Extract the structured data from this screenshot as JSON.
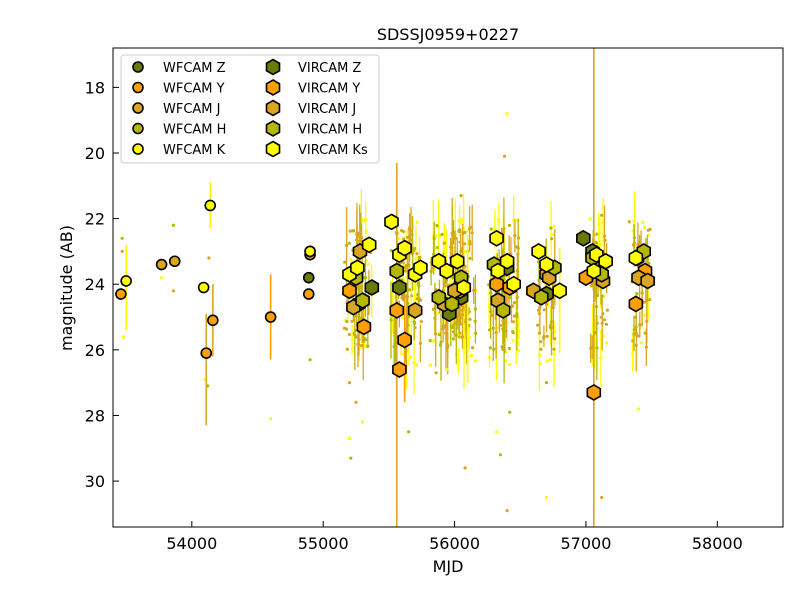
{
  "chart_data": {
    "type": "scatter",
    "title": "SDSSJ0959+0227",
    "xlabel": "MJD",
    "ylabel": "magnitude (AB)",
    "xlim": [
      53400,
      58500
    ],
    "ylim": [
      31.4,
      16.8
    ],
    "y_inverted": true,
    "xticks": [
      54000,
      55000,
      56000,
      57000,
      58000
    ],
    "yticks": [
      18,
      20,
      22,
      24,
      26,
      28,
      30
    ],
    "legend_position": "upper-left",
    "legend_columns": 2,
    "grid": false,
    "series": [
      {
        "name": "WFCAM Z",
        "marker": "circle",
        "color": "#6b7a00",
        "points": [
          [
            54890,
            23.8
          ]
        ]
      },
      {
        "name": "WFCAM Y",
        "marker": "circle",
        "color": "#ff9f00",
        "points": [
          [
            53460,
            24.3
          ],
          [
            54110,
            26.1
          ],
          [
            54600,
            25.0
          ],
          [
            54890,
            24.3
          ],
          [
            54160,
            25.1
          ]
        ]
      },
      {
        "name": "WFCAM J",
        "marker": "circle",
        "color": "#daa520",
        "points": [
          [
            53770,
            23.4
          ],
          [
            53870,
            23.3
          ],
          [
            54900,
            23.1
          ]
        ]
      },
      {
        "name": "WFCAM H",
        "marker": "circle",
        "color": "#b5b800",
        "points": [
          [
            54900,
            23.0
          ]
        ]
      },
      {
        "name": "WFCAM K",
        "marker": "circle",
        "color": "#ffff00",
        "points": [
          [
            53500,
            23.9
          ],
          [
            54090,
            24.1
          ],
          [
            54140,
            21.6
          ],
          [
            54900,
            23.0
          ]
        ]
      },
      {
        "name": "VIRCAM Z",
        "marker": "hexagon",
        "color": "#6b7a00",
        "points": [
          [
            55270,
            24.6
          ],
          [
            55370,
            24.1
          ],
          [
            55580,
            24.1
          ],
          [
            55960,
            24.9
          ],
          [
            56050,
            24.4
          ],
          [
            56400,
            23.5
          ],
          [
            56700,
            24.3
          ],
          [
            56980,
            22.6
          ],
          [
            57050,
            23.0
          ]
        ]
      },
      {
        "name": "VIRCAM Y",
        "marker": "hexagon",
        "color": "#ff9f00",
        "points": [
          [
            55200,
            24.2
          ],
          [
            55310,
            25.3
          ],
          [
            55580,
            26.6
          ],
          [
            55620,
            25.7
          ],
          [
            55560,
            24.8
          ],
          [
            56040,
            24.2
          ],
          [
            56320,
            24.0
          ],
          [
            56420,
            24.1
          ],
          [
            56700,
            23.7
          ],
          [
            57060,
            27.3
          ],
          [
            57000,
            23.8
          ],
          [
            57100,
            23.5
          ],
          [
            57380,
            24.6
          ],
          [
            57450,
            23.6
          ]
        ]
      },
      {
        "name": "VIRCAM J",
        "marker": "hexagon",
        "color": "#daa520",
        "points": [
          [
            55230,
            24.7
          ],
          [
            55280,
            23.0
          ],
          [
            55700,
            24.8
          ],
          [
            55920,
            24.6
          ],
          [
            56000,
            24.2
          ],
          [
            56330,
            24.5
          ],
          [
            56600,
            24.2
          ],
          [
            56720,
            23.8
          ],
          [
            57130,
            23.9
          ],
          [
            57400,
            23.8
          ],
          [
            57470,
            23.9
          ]
        ]
      },
      {
        "name": "VIRCAM H",
        "marker": "hexagon",
        "color": "#b5b800",
        "points": [
          [
            55250,
            23.8
          ],
          [
            55300,
            24.5
          ],
          [
            55560,
            23.6
          ],
          [
            55880,
            24.4
          ],
          [
            55980,
            24.6
          ],
          [
            56050,
            23.8
          ],
          [
            56300,
            23.4
          ],
          [
            56370,
            24.8
          ],
          [
            56660,
            24.4
          ],
          [
            56760,
            23.5
          ],
          [
            57050,
            23.2
          ],
          [
            57120,
            23.7
          ],
          [
            57390,
            23.2
          ],
          [
            57440,
            23.0
          ]
        ]
      },
      {
        "name": "VIRCAM Ks",
        "marker": "hexagon",
        "color": "#ffff00",
        "points": [
          [
            55200,
            23.7
          ],
          [
            55260,
            23.5
          ],
          [
            55350,
            22.8
          ],
          [
            55520,
            22.1
          ],
          [
            55580,
            23.1
          ],
          [
            55620,
            22.9
          ],
          [
            55700,
            23.7
          ],
          [
            55740,
            23.5
          ],
          [
            55880,
            23.3
          ],
          [
            55940,
            23.6
          ],
          [
            56020,
            23.3
          ],
          [
            56070,
            24.1
          ],
          [
            56320,
            22.6
          ],
          [
            56330,
            23.6
          ],
          [
            56400,
            23.3
          ],
          [
            56450,
            24.0
          ],
          [
            56640,
            23.0
          ],
          [
            56700,
            23.4
          ],
          [
            56800,
            24.2
          ],
          [
            57060,
            23.6
          ],
          [
            57080,
            23.1
          ],
          [
            57150,
            23.3
          ],
          [
            57380,
            23.2
          ]
        ]
      }
    ],
    "individual_points": [
      {
        "color": "#ffff00",
        "x_range": [
          55150,
          57450
        ],
        "y_range": [
          22.0,
          26.5
        ]
      },
      {
        "color": "#b5b800",
        "x_range": [
          55150,
          57450
        ],
        "y_range": [
          22.2,
          26.0
        ]
      },
      {
        "color": "#daa520",
        "x_range": [
          53450,
          57450
        ],
        "y_range": [
          22.3,
          26.0
        ]
      }
    ],
    "outlier_points": [
      [
        53480,
        25.6
      ],
      [
        53470,
        22.6
      ],
      [
        53470,
        23.0
      ],
      [
        53770,
        23.8
      ],
      [
        53860,
        22.2
      ],
      [
        53860,
        24.2
      ],
      [
        54100,
        26.9
      ],
      [
        54120,
        27.1
      ],
      [
        54130,
        23.2
      ],
      [
        54600,
        28.1
      ],
      [
        54900,
        26.3
      ],
      [
        55200,
        27.0
      ],
      [
        55200,
        28.7
      ],
      [
        55210,
        29.3
      ],
      [
        55250,
        27.6
      ],
      [
        55300,
        28.2
      ],
      [
        55650,
        28.5
      ],
      [
        55860,
        26.7
      ],
      [
        55940,
        26.6
      ],
      [
        56050,
        21.3
      ],
      [
        56080,
        29.6
      ],
      [
        56320,
        28.5
      ],
      [
        56350,
        29.2
      ],
      [
        56380,
        20.1
      ],
      [
        56400,
        18.8
      ],
      [
        56420,
        27.9
      ],
      [
        56400,
        30.9
      ],
      [
        56700,
        30.5
      ],
      [
        56700,
        27.0
      ],
      [
        57120,
        30.5
      ],
      [
        57400,
        27.8
      ],
      [
        57120,
        21.9
      ],
      [
        57330,
        22.1
      ],
      [
        56960,
        22.4
      ]
    ],
    "error_bars": [
      {
        "x": 55560,
        "ymin": 20.3,
        "ymax": 31.4,
        "color": "#daa520"
      },
      {
        "x": 57060,
        "ymin": 16.8,
        "ymax": 31.4,
        "color": "#daa520"
      },
      {
        "x": 54600,
        "ymin": 23.7,
        "ymax": 26.3,
        "color": "#ff9f00"
      },
      {
        "x": 54110,
        "ymin": 24.9,
        "ymax": 28.3,
        "color": "#daa520"
      },
      {
        "x": 54140,
        "ymin": 20.9,
        "ymax": 22.3,
        "color": "#ffff00"
      },
      {
        "x": 54160,
        "ymin": 24.0,
        "ymax": 26.2,
        "color": "#daa520"
      },
      {
        "x": 53500,
        "ymin": 22.8,
        "ymax": 25.4,
        "color": "#ffff00"
      },
      {
        "x": 55620,
        "ymin": 24.7,
        "ymax": 27.6,
        "color": "#ff9f00"
      },
      {
        "x": 56100,
        "ymin": 22.5,
        "ymax": 27.0,
        "color": "#ffff00"
      },
      {
        "x": 56800,
        "ymin": 22.9,
        "ymax": 26.1,
        "color": "#ffff00"
      }
    ]
  }
}
